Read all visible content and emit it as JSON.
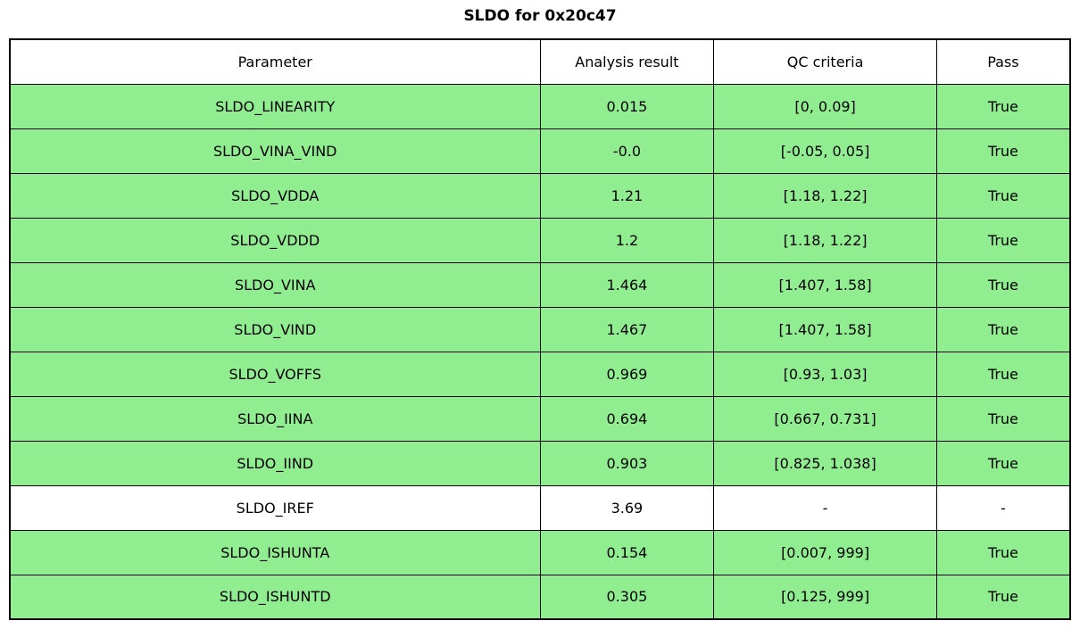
{
  "title": "SLDO for 0x20c47",
  "colors": {
    "pass_row_bg": "#90EE90",
    "neutral_row_bg": "#FFFFFF",
    "border": "#000000"
  },
  "table": {
    "headers": [
      "Parameter",
      "Analysis result",
      "QC criteria",
      "Pass"
    ],
    "rows": [
      {
        "parameter": "SLDO_LINEARITY",
        "result": "0.015",
        "criteria": "[0, 0.09]",
        "pass": "True",
        "passed": true
      },
      {
        "parameter": "SLDO_VINA_VIND",
        "result": "-0.0",
        "criteria": "[-0.05, 0.05]",
        "pass": "True",
        "passed": true
      },
      {
        "parameter": "SLDO_VDDA",
        "result": "1.21",
        "criteria": "[1.18, 1.22]",
        "pass": "True",
        "passed": true
      },
      {
        "parameter": "SLDO_VDDD",
        "result": "1.2",
        "criteria": "[1.18, 1.22]",
        "pass": "True",
        "passed": true
      },
      {
        "parameter": "SLDO_VINA",
        "result": "1.464",
        "criteria": "[1.407, 1.58]",
        "pass": "True",
        "passed": true
      },
      {
        "parameter": "SLDO_VIND",
        "result": "1.467",
        "criteria": "[1.407, 1.58]",
        "pass": "True",
        "passed": true
      },
      {
        "parameter": "SLDO_VOFFS",
        "result": "0.969",
        "criteria": "[0.93, 1.03]",
        "pass": "True",
        "passed": true
      },
      {
        "parameter": "SLDO_IINA",
        "result": "0.694",
        "criteria": "[0.667, 0.731]",
        "pass": "True",
        "passed": true
      },
      {
        "parameter": "SLDO_IIND",
        "result": "0.903",
        "criteria": "[0.825, 1.038]",
        "pass": "True",
        "passed": true
      },
      {
        "parameter": "SLDO_IREF",
        "result": "3.69",
        "criteria": "-",
        "pass": "-",
        "passed": false
      },
      {
        "parameter": "SLDO_ISHUNTA",
        "result": "0.154",
        "criteria": "[0.007, 999]",
        "pass": "True",
        "passed": true
      },
      {
        "parameter": "SLDO_ISHUNTD",
        "result": "0.305",
        "criteria": "[0.125, 999]",
        "pass": "True",
        "passed": true
      }
    ]
  }
}
